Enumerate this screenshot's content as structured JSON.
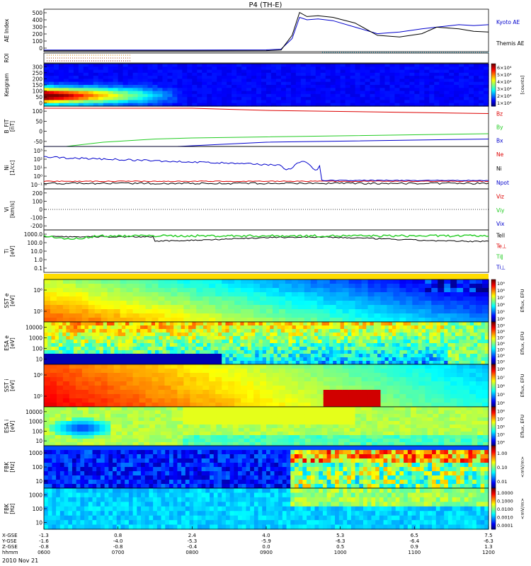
{
  "title": "P4 (TH-E)",
  "date_label": "2010 Nov 21",
  "colors": {
    "ae_kyoto": "#0000cc",
    "ae_themis": "#000000",
    "red": "#dd0000",
    "green": "#22cc22",
    "blue": "#0000cc"
  },
  "chart_data": [
    {
      "type": "line",
      "panel": "ae",
      "ylabel": "AE Index",
      "yticks": [
        "0",
        "100",
        "200",
        "300",
        "400",
        "500"
      ],
      "ylim": [
        0,
        520
      ],
      "legend": [
        "Kyoto AE",
        "Themis AE"
      ],
      "series": [
        {
          "name": "Kyoto AE",
          "x": [
            6.0,
            7.0,
            8.0,
            9.0,
            9.2,
            9.35,
            9.45,
            9.55,
            9.7,
            9.9,
            10.2,
            10.5,
            10.8,
            11.1,
            11.3,
            11.6,
            11.8,
            12.0
          ],
          "y": [
            20,
            20,
            20,
            22,
            30,
            160,
            420,
            390,
            400,
            380,
            300,
            220,
            240,
            280,
            300,
            330,
            320,
            330
          ]
        },
        {
          "name": "Themis AE",
          "x": [
            6.0,
            7.0,
            8.0,
            9.0,
            9.2,
            9.35,
            9.45,
            9.55,
            9.7,
            9.9,
            10.2,
            10.5,
            10.8,
            11.1,
            11.3,
            11.6,
            11.8,
            12.0
          ],
          "y": [
            10,
            10,
            10,
            12,
            20,
            200,
            480,
            430,
            440,
            420,
            350,
            200,
            180,
            220,
            300,
            280,
            250,
            240
          ]
        }
      ]
    },
    {
      "type": "line",
      "panel": "roi",
      "ylabel": "ROI"
    },
    {
      "type": "heatmap",
      "panel": "kesgram",
      "ylabel": "Kesgram",
      "yticks": [
        "0",
        "50",
        "100",
        "150",
        "200",
        "250",
        "300"
      ],
      "colorbar": {
        "label": "[counts]",
        "ticks": [
          "1×10⁴",
          "2×10⁴",
          "3×10⁴",
          "4×10⁴",
          "5×10⁴",
          "6×10⁴"
        ]
      }
    },
    {
      "type": "line",
      "panel": "bfield",
      "ylabel": "B_FIT [nT]",
      "yticks": [
        "-50",
        "0",
        "50",
        "100"
      ],
      "ylim": [
        -80,
        110
      ],
      "legend": [
        "Bz",
        "By",
        "Bx"
      ],
      "series": [
        {
          "name": "Bz",
          "x": [
            6.0,
            7.0,
            8.0,
            8.5,
            9.0,
            10.0,
            11.0,
            12.0
          ],
          "y": [
            100,
            100,
            100,
            95,
            90,
            85,
            80,
            75
          ]
        },
        {
          "name": "By",
          "x": [
            6.0,
            6.3,
            6.8,
            7.5,
            8.0,
            9.0,
            10.0,
            11.0,
            12.0
          ],
          "y": [
            -80,
            -80,
            -60,
            -45,
            -40,
            -35,
            -30,
            -25,
            -20
          ]
        },
        {
          "name": "Bx",
          "x": [
            6.0,
            7.0,
            7.8,
            8.4,
            9.0,
            10.0,
            11.0,
            12.0
          ],
          "y": [
            -80,
            -80,
            -80,
            -70,
            -60,
            -55,
            -50,
            -45
          ]
        }
      ]
    },
    {
      "type": "line",
      "panel": "density",
      "ylabel": "Ni",
      "yunit": "[1/cc]",
      "legend": [
        "Ne",
        "Ni",
        "Npot"
      ],
      "yticks": [
        "10⁻¹",
        "10⁰",
        "10¹",
        "10²",
        "10³"
      ]
    },
    {
      "type": "line",
      "panel": "velocity",
      "ylabel": "Vi",
      "yunit": "[km/s]",
      "yticks": [
        "-200",
        "-100",
        "0",
        "100",
        "200"
      ],
      "legend": [
        "Vix",
        "Viy",
        "Viz"
      ]
    },
    {
      "type": "line",
      "panel": "temperature",
      "ylabel": "Ti",
      "yunit": "[eV]",
      "yticks": [
        "0.1",
        "1.0",
        "10.0",
        "100.0",
        "1000.0"
      ],
      "legend": [
        "Tell",
        "Te⊥",
        "Ti∥",
        "Ti⊥"
      ]
    },
    {
      "type": "heatmap",
      "panel": "sst_e",
      "ylabel": "SST e",
      "yunit": "[eV]",
      "yticks": [
        "10⁵",
        "10⁶"
      ],
      "colorbar": {
        "label": "Eflux, EFU",
        "ticks": [
          "10⁴",
          "10⁵",
          "10⁶",
          "10⁷",
          "10⁸",
          "10⁹"
        ]
      }
    },
    {
      "type": "heatmap",
      "panel": "esa_e",
      "ylabel": "ESA e",
      "yunit": "[eV]",
      "yticks": [
        "10",
        "100",
        "1000",
        "10000"
      ],
      "colorbar": {
        "label": "Eflux, EFU",
        "ticks": [
          "10³",
          "10⁴",
          "10⁵",
          "10⁶",
          "10⁷",
          "10⁸",
          "10⁹"
        ]
      }
    },
    {
      "type": "heatmap",
      "panel": "sst_i",
      "ylabel": "SST i",
      "yunit": "[eV]",
      "yticks": [
        "10⁵",
        "10⁶"
      ],
      "colorbar": {
        "label": "Eflux, EFU",
        "ticks": [
          "10⁴",
          "10⁵",
          "10⁶",
          "10⁷",
          "10⁸"
        ]
      }
    },
    {
      "type": "heatmap",
      "panel": "esa_i",
      "ylabel": "ESA i",
      "yunit": "[eV]",
      "yticks": [
        "10",
        "100",
        "1000",
        "10000"
      ],
      "colorbar": {
        "label": "Eflux, EFU",
        "ticks": [
          "10⁴",
          "10⁵",
          "10⁶",
          "10⁷",
          "10⁸"
        ]
      }
    },
    {
      "type": "heatmap",
      "panel": "fbk_e",
      "ylabel": "FBK",
      "yunit": "[Hz]",
      "yticks": [
        "10",
        "100",
        "1000"
      ],
      "colorbar": {
        "label": "<mV/m>",
        "ticks": [
          "0.01",
          "0.10",
          "1.00"
        ]
      }
    },
    {
      "type": "heatmap",
      "panel": "fbk_b",
      "ylabel": "FBK",
      "yunit": "[Hz]",
      "yticks": [
        "10",
        "100",
        "1000"
      ],
      "colorbar": {
        "label": "<mV/m>",
        "ticks": [
          "0.0001",
          "0.0010",
          "0.0100",
          "0.1000",
          "1.0000"
        ]
      }
    }
  ],
  "x_axis": {
    "row_labels": [
      "X-GSE",
      "Y-GSE",
      "Z-GSE",
      "hhmm"
    ],
    "columns": [
      {
        "vals": [
          "-1.3",
          "-1.6",
          "-0.8",
          "0600"
        ]
      },
      {
        "vals": [
          "0.8",
          "-4.0",
          "-0.8",
          "0700"
        ]
      },
      {
        "vals": [
          "2.4",
          "-5.3",
          "-0.4",
          "0800"
        ]
      },
      {
        "vals": [
          "4.0",
          "-5.9",
          "0.0",
          "0900"
        ]
      },
      {
        "vals": [
          "5.3",
          "-6.3",
          "0.5",
          "1000"
        ]
      },
      {
        "vals": [
          "6.5",
          "-6.4",
          "0.9",
          "1100"
        ]
      },
      {
        "vals": [
          "7.5",
          "-6.3",
          "1.3",
          "1200"
        ]
      }
    ]
  }
}
